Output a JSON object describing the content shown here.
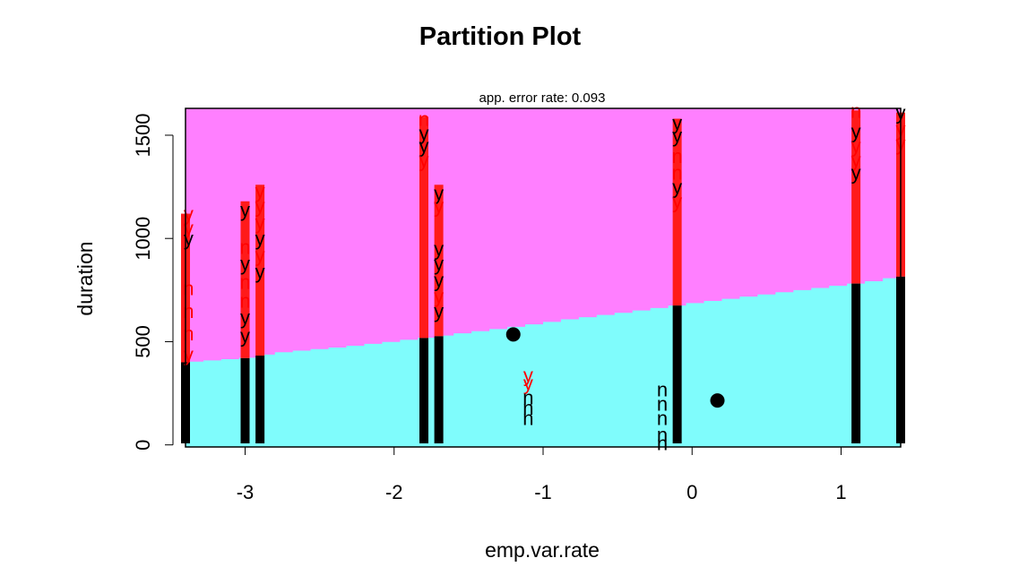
{
  "chart_data": {
    "type": "scatter",
    "title": "Partition Plot",
    "subtitle": "app. error rate: 0.093",
    "xlabel": "emp.var.rate",
    "ylabel": "duration",
    "xlim": [
      -3.4,
      1.4
    ],
    "ylim": [
      -10,
      1630
    ],
    "x_ticks": [
      "-3",
      "-2",
      "-1",
      "0",
      "1"
    ],
    "x_tick_values": [
      -3,
      -2,
      -1,
      0,
      1
    ],
    "y_ticks": [
      "0",
      "500",
      "1000",
      "1500"
    ],
    "y_tick_values": [
      0,
      500,
      1000,
      1500
    ],
    "regions": [
      {
        "label": "no",
        "color": "#7ffcfc"
      },
      {
        "label": "yes",
        "color": "#ff7fff"
      }
    ],
    "boundary": [
      [
        -3.4,
        400
      ],
      [
        -3.0,
        420
      ],
      [
        -2.8,
        445
      ],
      [
        -2.4,
        470
      ],
      [
        -2.0,
        500
      ],
      [
        -1.6,
        535
      ],
      [
        -1.2,
        570
      ],
      [
        -0.8,
        610
      ],
      [
        -0.4,
        645
      ],
      [
        0.0,
        685
      ],
      [
        0.4,
        720
      ],
      [
        0.8,
        755
      ],
      [
        1.2,
        790
      ],
      [
        1.4,
        815
      ]
    ],
    "point_columns": [
      {
        "x": -3.4,
        "top": 1120
      },
      {
        "x": -3.0,
        "top": 1180
      },
      {
        "x": -2.9,
        "top": 1260
      },
      {
        "x": -1.8,
        "top": 1590
      },
      {
        "x": -1.7,
        "top": 1260
      },
      {
        "x": -0.1,
        "top": 1580
      },
      {
        "x": 1.1,
        "top": 1620
      },
      {
        "x": 1.4,
        "top": 1610
      }
    ],
    "centers": [
      {
        "x": -1.2,
        "y": 535
      },
      {
        "x": 0.17,
        "y": 215
      }
    ],
    "labels": [
      {
        "x": -3.38,
        "y": 1120,
        "text": "y",
        "color": "#ff0000"
      },
      {
        "x": -3.38,
        "y": 1050,
        "text": "y",
        "color": "#ff0000"
      },
      {
        "x": -3.38,
        "y": 1000,
        "text": "y",
        "color": "#000000"
      },
      {
        "x": -3.38,
        "y": 760,
        "text": "n",
        "color": "#ff0000"
      },
      {
        "x": -3.38,
        "y": 650,
        "text": "n",
        "color": "#ff0000"
      },
      {
        "x": -3.38,
        "y": 540,
        "text": "n",
        "color": "#ff0000"
      },
      {
        "x": -3.38,
        "y": 440,
        "text": "y",
        "color": "#ff0000"
      },
      {
        "x": -3.0,
        "y": 1140,
        "text": "y",
        "color": "#000000"
      },
      {
        "x": -3.0,
        "y": 960,
        "text": "n",
        "color": "#ff0000"
      },
      {
        "x": -3.0,
        "y": 880,
        "text": "y",
        "color": "#000000"
      },
      {
        "x": -3.0,
        "y": 790,
        "text": "n",
        "color": "#ff0000"
      },
      {
        "x": -3.0,
        "y": 700,
        "text": "n",
        "color": "#ff0000"
      },
      {
        "x": -3.0,
        "y": 620,
        "text": "y",
        "color": "#000000"
      },
      {
        "x": -3.0,
        "y": 530,
        "text": "y",
        "color": "#000000"
      },
      {
        "x": -3.0,
        "y": 380,
        "text": "n",
        "color": "#000000"
      },
      {
        "x": -3.0,
        "y": 250,
        "text": "n",
        "color": "#000000"
      },
      {
        "x": -3.0,
        "y": 160,
        "text": "n",
        "color": "#000000"
      },
      {
        "x": -3.0,
        "y": 70,
        "text": "n",
        "color": "#000000"
      },
      {
        "x": -2.9,
        "y": 1230,
        "text": "y",
        "color": "#ff0000"
      },
      {
        "x": -2.9,
        "y": 1160,
        "text": "y",
        "color": "#ff0000"
      },
      {
        "x": -2.9,
        "y": 1080,
        "text": "y",
        "color": "#ff0000"
      },
      {
        "x": -2.9,
        "y": 1000,
        "text": "y",
        "color": "#000000"
      },
      {
        "x": -2.9,
        "y": 920,
        "text": "y",
        "color": "#ff0000"
      },
      {
        "x": -2.9,
        "y": 840,
        "text": "y",
        "color": "#000000"
      },
      {
        "x": -1.8,
        "y": 1580,
        "text": "n",
        "color": "#ff0000"
      },
      {
        "x": -1.8,
        "y": 1510,
        "text": "y",
        "color": "#000000"
      },
      {
        "x": -1.8,
        "y": 1450,
        "text": "y",
        "color": "#000000"
      },
      {
        "x": -1.8,
        "y": 1380,
        "text": "y",
        "color": "#ff0000"
      },
      {
        "x": -1.7,
        "y": 1220,
        "text": "y",
        "color": "#000000"
      },
      {
        "x": -1.7,
        "y": 1160,
        "text": "y",
        "color": "#ff0000"
      },
      {
        "x": -1.7,
        "y": 950,
        "text": "y",
        "color": "#000000"
      },
      {
        "x": -1.7,
        "y": 880,
        "text": "y",
        "color": "#000000"
      },
      {
        "x": -1.7,
        "y": 800,
        "text": "y",
        "color": "#000000"
      },
      {
        "x": -1.7,
        "y": 720,
        "text": "y",
        "color": "#ff0000"
      },
      {
        "x": -1.7,
        "y": 650,
        "text": "y",
        "color": "#000000"
      },
      {
        "x": -1.1,
        "y": 340,
        "text": "y",
        "color": "#ff0000"
      },
      {
        "x": -1.1,
        "y": 300,
        "text": "y",
        "color": "#ff0000"
      },
      {
        "x": -1.1,
        "y": 230,
        "text": "n",
        "color": "#000000"
      },
      {
        "x": -1.1,
        "y": 180,
        "text": "n",
        "color": "#000000"
      },
      {
        "x": -1.1,
        "y": 130,
        "text": "n",
        "color": "#000000"
      },
      {
        "x": -0.2,
        "y": 270,
        "text": "n",
        "color": "#000000"
      },
      {
        "x": -0.2,
        "y": 200,
        "text": "n",
        "color": "#000000"
      },
      {
        "x": -0.2,
        "y": 130,
        "text": "n",
        "color": "#000000"
      },
      {
        "x": -0.2,
        "y": 50,
        "text": "n",
        "color": "#000000"
      },
      {
        "x": -0.2,
        "y": 10,
        "text": "n",
        "color": "#000000"
      },
      {
        "x": -0.1,
        "y": 1560,
        "text": "y",
        "color": "#000000"
      },
      {
        "x": -0.1,
        "y": 1500,
        "text": "y",
        "color": "#000000"
      },
      {
        "x": -0.1,
        "y": 1400,
        "text": "n",
        "color": "#ff0000"
      },
      {
        "x": -0.1,
        "y": 1320,
        "text": "n",
        "color": "#ff0000"
      },
      {
        "x": -0.1,
        "y": 1250,
        "text": "y",
        "color": "#000000"
      },
      {
        "x": -0.1,
        "y": 1180,
        "text": "y",
        "color": "#ff0000"
      },
      {
        "x": 1.1,
        "y": 1620,
        "text": "n",
        "color": "#ff0000"
      },
      {
        "x": 1.1,
        "y": 1520,
        "text": "y",
        "color": "#000000"
      },
      {
        "x": 1.1,
        "y": 1450,
        "text": "y",
        "color": "#ff0000"
      },
      {
        "x": 1.1,
        "y": 1380,
        "text": "y",
        "color": "#ff0000"
      },
      {
        "x": 1.1,
        "y": 1320,
        "text": "y",
        "color": "#000000"
      },
      {
        "x": 1.4,
        "y": 1610,
        "text": "y",
        "color": "#000000"
      },
      {
        "x": 1.4,
        "y": 1530,
        "text": "y",
        "color": "#ff0000"
      },
      {
        "x": 1.4,
        "y": 1460,
        "text": "y",
        "color": "#ff0000"
      }
    ]
  }
}
